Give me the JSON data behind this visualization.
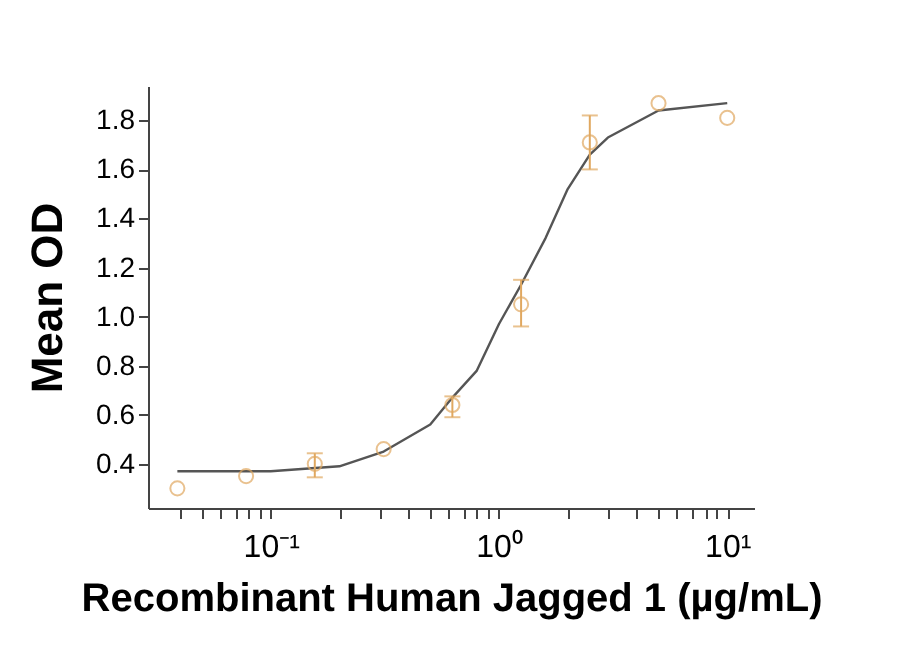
{
  "chart_data": {
    "type": "scatter",
    "xlabel": "Recombinant Human Jagged 1 (µg/mL)",
    "ylabel": "Mean OD",
    "log": "x",
    "grid": false,
    "marker": "circle",
    "xlim": [
      0.029,
      13.1
    ],
    "ylim": [
      0.22,
      1.94
    ],
    "xticks": [
      {
        "value": 0.04,
        "label": null
      },
      {
        "value": 0.05,
        "label": null
      },
      {
        "value": 0.06,
        "label": null
      },
      {
        "value": 0.07,
        "label": null
      },
      {
        "value": 0.08,
        "label": null
      },
      {
        "value": 0.09,
        "label": null
      },
      {
        "value": 0.1,
        "label": "10⁻¹"
      },
      {
        "value": 0.2,
        "label": null
      },
      {
        "value": 0.3,
        "label": null
      },
      {
        "value": 0.4,
        "label": null
      },
      {
        "value": 0.5,
        "label": null
      },
      {
        "value": 0.6,
        "label": null
      },
      {
        "value": 0.7,
        "label": null
      },
      {
        "value": 0.8,
        "label": null
      },
      {
        "value": 0.9,
        "label": null
      },
      {
        "value": 1,
        "label": "10⁰"
      },
      {
        "value": 2,
        "label": null
      },
      {
        "value": 3,
        "label": null
      },
      {
        "value": 4,
        "label": null
      },
      {
        "value": 5,
        "label": null
      },
      {
        "value": 6,
        "label": null
      },
      {
        "value": 7,
        "label": null
      },
      {
        "value": 8,
        "label": null
      },
      {
        "value": 9,
        "label": null
      },
      {
        "value": 10,
        "label": "10¹"
      }
    ],
    "yticks": [
      0.4,
      0.6,
      0.8,
      {
        "value": 1,
        "label": "1.0"
      },
      1.2,
      1.4,
      1.6,
      1.8
    ],
    "series": [
      {
        "type": "line",
        "color": "#555555",
        "marker": "none",
        "x": [
          0.039,
          0.1,
          0.2,
          0.3125,
          0.5,
          0.625,
          0.8,
          1.0,
          1.25,
          1.6,
          2,
          2.5,
          3,
          5,
          10
        ],
        "values": [
          0.37,
          0.37,
          0.39,
          0.45,
          0.56,
          0.67,
          0.78,
          0.97,
          1.13,
          1.32,
          1.52,
          1.66,
          1.73,
          1.84,
          1.87
        ]
      },
      {
        "color": "#e0a860",
        "x": [
          0.039,
          0.078,
          0.156,
          0.3125,
          0.625,
          1.25,
          2.5,
          5,
          10
        ],
        "values": [
          0.3,
          0.35,
          0.4,
          0.46,
          0.64,
          1.05,
          1.71,
          1.87,
          1.81
        ],
        "errors": [
          null,
          null,
          [
            0.345,
            0.443
          ],
          null,
          [
            0.59,
            0.675
          ],
          [
            0.96,
            1.15
          ],
          [
            1.6,
            1.82
          ],
          null,
          null
        ]
      }
    ]
  }
}
